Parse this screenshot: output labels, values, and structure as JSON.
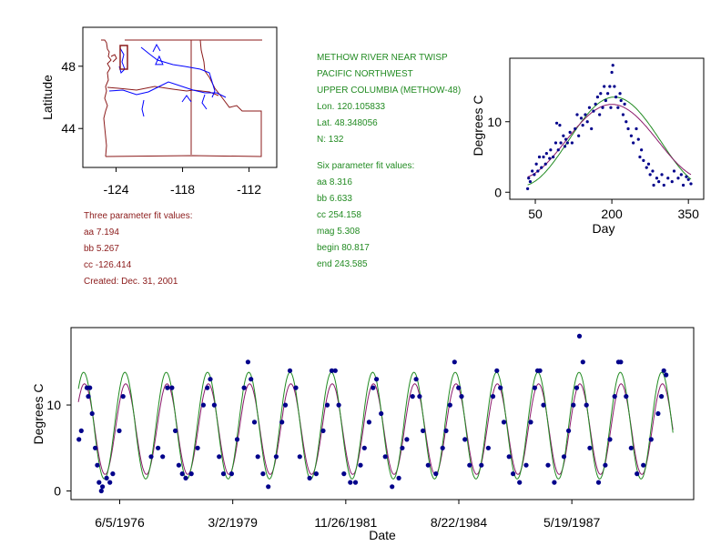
{
  "station": {
    "lines": [
      "METHOW RIVER NEAR TWISP",
      "PACIFIC NORTHWEST",
      "UPPER COLUMBIA (METHOW-48)",
      "Lon. 120.105833",
      "Lat. 48.348056",
      "N: 132"
    ]
  },
  "six_param": {
    "lines": [
      "Six parameter fit values:",
      "aa 8.316",
      "bb 6.633",
      "cc 254.158",
      "mag 5.308",
      "begin 80.817",
      "end 243.585"
    ]
  },
  "three_param": {
    "lines": [
      "Three parameter fit values:",
      "aa 7.194",
      "bb 5.267",
      "cc -126.414",
      "Created:   Dec. 31, 2001"
    ]
  },
  "colors": {
    "three_param_text": "#8b1a1a",
    "six_param_text": "#228b22",
    "points": "#00008b",
    "three_fit": "#8b1a6b",
    "six_fit": "#228b22",
    "rivers": "#0000ff",
    "borders": "#8b1a1a"
  },
  "chart_data": [
    {
      "type": "map",
      "ylabel": "Latitude",
      "xticks": [
        "-124",
        "-118",
        "-112"
      ],
      "yticks": [
        "48",
        "44"
      ],
      "xlim": [
        -127,
        -109.5
      ],
      "ylim": [
        41.5,
        50.5
      ]
    },
    {
      "type": "scatter",
      "xlabel": "Day",
      "ylabel": "Degrees C",
      "xlim": [
        0,
        380
      ],
      "ylim": [
        -1,
        19
      ],
      "xticks": [
        50,
        200,
        350
      ],
      "yticks": [
        0,
        10
      ],
      "points": [
        [
          35,
          0.5
        ],
        [
          37,
          2
        ],
        [
          40,
          1.5
        ],
        [
          44,
          3
        ],
        [
          48,
          2.5
        ],
        [
          52,
          4
        ],
        [
          55,
          3
        ],
        [
          58,
          5
        ],
        [
          62,
          3.5
        ],
        [
          66,
          5
        ],
        [
          70,
          4
        ],
        [
          72,
          5.5
        ],
        [
          78,
          4.8
        ],
        [
          80,
          6
        ],
        [
          85,
          5
        ],
        [
          90,
          7
        ],
        [
          92,
          9.8
        ],
        [
          95,
          6
        ],
        [
          98,
          9.5
        ],
        [
          100,
          7
        ],
        [
          105,
          8
        ],
        [
          108,
          6.5
        ],
        [
          110,
          7.5
        ],
        [
          113,
          7
        ],
        [
          118,
          8.5
        ],
        [
          122,
          7
        ],
        [
          128,
          9
        ],
        [
          132,
          11
        ],
        [
          135,
          8
        ],
        [
          140,
          10.5
        ],
        [
          143,
          9.5
        ],
        [
          148,
          11
        ],
        [
          152,
          10
        ],
        [
          156,
          12
        ],
        [
          160,
          9
        ],
        [
          164,
          11.5
        ],
        [
          168,
          12.5
        ],
        [
          172,
          13.5
        ],
        [
          176,
          11
        ],
        [
          178,
          14
        ],
        [
          182,
          12
        ],
        [
          185,
          15
        ],
        [
          188,
          13
        ],
        [
          192,
          14
        ],
        [
          196,
          15
        ],
        [
          198,
          12
        ],
        [
          200,
          17
        ],
        [
          202,
          18
        ],
        [
          205,
          15
        ],
        [
          208,
          13.5
        ],
        [
          212,
          12
        ],
        [
          216,
          14
        ],
        [
          218,
          13
        ],
        [
          222,
          11
        ],
        [
          225,
          12.5
        ],
        [
          228,
          10
        ],
        [
          232,
          9
        ],
        [
          238,
          8
        ],
        [
          242,
          7
        ],
        [
          248,
          9
        ],
        [
          252,
          7.5
        ],
        [
          255,
          5
        ],
        [
          258,
          6
        ],
        [
          262,
          4.5
        ],
        [
          268,
          3.5
        ],
        [
          272,
          4
        ],
        [
          275,
          2.5
        ],
        [
          280,
          3
        ],
        [
          282,
          1
        ],
        [
          288,
          2
        ],
        [
          292,
          1.5
        ],
        [
          298,
          2.5
        ],
        [
          302,
          1
        ],
        [
          310,
          2
        ],
        [
          318,
          1.5
        ],
        [
          322,
          3
        ],
        [
          330,
          2
        ],
        [
          336,
          2.5
        ],
        [
          340,
          1
        ],
        [
          346,
          2.2
        ],
        [
          350,
          1.8
        ],
        [
          355,
          1.2
        ]
      ],
      "series": [
        {
          "name": "Three parameter fit",
          "params": {
            "aa": 7.194,
            "bb": 5.267,
            "cc": -126.414
          }
        },
        {
          "name": "Six parameter fit",
          "params": {
            "aa": 8.316,
            "bb": 6.633,
            "cc": 254.158,
            "mag": 5.308,
            "begin": 80.817,
            "end": 243.585
          }
        }
      ]
    },
    {
      "type": "scatter",
      "xlabel": "Date",
      "ylabel": "Degrees C",
      "xlim": [
        "1975-04-01",
        "1990-05-01"
      ],
      "ylim": [
        -1,
        19
      ],
      "xticks": [
        "6/5/1976",
        "3/2/1979",
        "11/26/1981",
        "8/22/1984",
        "5/19/1987"
      ],
      "yticks": [
        0,
        10
      ],
      "points": [
        [
          "1975-06-10",
          6
        ],
        [
          "1975-07-01",
          7
        ],
        [
          "1975-08-20",
          12
        ],
        [
          "1975-09-01",
          11
        ],
        [
          "1975-09-15",
          12
        ],
        [
          "1975-10-05",
          9
        ],
        [
          "1975-11-01",
          5
        ],
        [
          "1975-11-20",
          3
        ],
        [
          "1975-12-05",
          1
        ],
        [
          "1975-12-25",
          0
        ],
        [
          "1976-01-05",
          0.5
        ],
        [
          "1976-02-10",
          1.5
        ],
        [
          "1976-03-10",
          1
        ],
        [
          "1976-04-05",
          2
        ],
        [
          "1976-06-01",
          7
        ],
        [
          "1976-07-05",
          11
        ],
        [
          "1977-03-10",
          4
        ],
        [
          "1977-05-10",
          5
        ],
        [
          "1977-06-20",
          4
        ],
        [
          "1977-08-01",
          12
        ],
        [
          "1977-09-10",
          12
        ],
        [
          "1977-10-10",
          7
        ],
        [
          "1977-11-10",
          3
        ],
        [
          "1977-12-10",
          2
        ],
        [
          "1978-01-10",
          1.5
        ],
        [
          "1978-03-01",
          2
        ],
        [
          "1978-04-25",
          5
        ],
        [
          "1978-06-15",
          10
        ],
        [
          "1978-07-20",
          12
        ],
        [
          "1978-08-15",
          13
        ],
        [
          "1978-09-20",
          10
        ],
        [
          "1978-11-01",
          4
        ],
        [
          "1978-12-10",
          2
        ],
        [
          "1979-02-20",
          2
        ],
        [
          "1979-04-10",
          6
        ],
        [
          "1979-06-10",
          12
        ],
        [
          "1979-07-15",
          15
        ],
        [
          "1979-08-10",
          13
        ],
        [
          "1979-09-10",
          8
        ],
        [
          "1979-10-10",
          4
        ],
        [
          "1979-11-25",
          2
        ],
        [
          "1980-01-10",
          0.5
        ],
        [
          "1980-03-20",
          4
        ],
        [
          "1980-05-10",
          8
        ],
        [
          "1980-06-10",
          10
        ],
        [
          "1980-07-20",
          14
        ],
        [
          "1980-09-10",
          12
        ],
        [
          "1980-10-15",
          4
        ],
        [
          "1981-01-10",
          1.5
        ],
        [
          "1981-03-10",
          2
        ],
        [
          "1981-05-10",
          7
        ],
        [
          "1981-06-15",
          10
        ],
        [
          "1981-07-25",
          14
        ],
        [
          "1981-08-25",
          14
        ],
        [
          "1981-09-25",
          10
        ],
        [
          "1981-11-10",
          2
        ],
        [
          "1982-01-05",
          1
        ],
        [
          "1982-02-20",
          1
        ],
        [
          "1982-04-05",
          3
        ],
        [
          "1982-05-10",
          5
        ],
        [
          "1982-06-20",
          8
        ],
        [
          "1982-07-25",
          12
        ],
        [
          "1982-08-25",
          13
        ],
        [
          "1982-10-05",
          9
        ],
        [
          "1982-11-10",
          4
        ],
        [
          "1983-01-10",
          0.5
        ],
        [
          "1983-03-10",
          1.5
        ],
        [
          "1983-04-10",
          5
        ],
        [
          "1983-05-20",
          6
        ],
        [
          "1983-07-10",
          11
        ],
        [
          "1983-08-10",
          13
        ],
        [
          "1983-09-10",
          11
        ],
        [
          "1983-10-10",
          7
        ],
        [
          "1983-11-25",
          3
        ],
        [
          "1984-02-01",
          2
        ],
        [
          "1984-04-01",
          5
        ],
        [
          "1984-05-01",
          7
        ],
        [
          "1984-06-05",
          10
        ],
        [
          "1984-07-15",
          15
        ],
        [
          "1984-08-20",
          12
        ],
        [
          "1984-09-15",
          11
        ],
        [
          "1984-10-15",
          6
        ],
        [
          "1984-11-25",
          3
        ],
        [
          "1985-03-10",
          3
        ],
        [
          "1985-05-10",
          5
        ],
        [
          "1985-06-20",
          11
        ],
        [
          "1985-07-25",
          14
        ],
        [
          "1985-08-25",
          12
        ],
        [
          "1985-09-25",
          8
        ],
        [
          "1985-11-10",
          4
        ],
        [
          "1985-12-15",
          2
        ],
        [
          "1986-02-10",
          1
        ],
        [
          "1986-04-10",
          3
        ],
        [
          "1986-05-20",
          8
        ],
        [
          "1986-06-25",
          12
        ],
        [
          "1986-07-20",
          14
        ],
        [
          "1986-08-10",
          14
        ],
        [
          "1986-09-10",
          10
        ],
        [
          "1986-10-20",
          3
        ],
        [
          "1986-12-15",
          1
        ],
        [
          "1987-03-10",
          4
        ],
        [
          "1987-04-20",
          7
        ],
        [
          "1987-06-01",
          10
        ],
        [
          "1987-07-01",
          12
        ],
        [
          "1987-07-25",
          18
        ],
        [
          "1987-08-25",
          15
        ],
        [
          "1987-09-25",
          10
        ],
        [
          "1987-10-25",
          5
        ],
        [
          "1988-01-10",
          1
        ],
        [
          "1988-03-10",
          3
        ],
        [
          "1988-04-20",
          6
        ],
        [
          "1988-06-01",
          11
        ],
        [
          "1988-07-05",
          15
        ],
        [
          "1988-07-25",
          15
        ],
        [
          "1988-09-10",
          11
        ],
        [
          "1988-10-25",
          5
        ],
        [
          "1988-12-15",
          2
        ],
        [
          "1989-02-10",
          3
        ],
        [
          "1989-04-20",
          6
        ],
        [
          "1989-06-20",
          9
        ],
        [
          "1989-07-20",
          11
        ],
        [
          "1989-08-10",
          14
        ],
        [
          "1989-08-30",
          13.5
        ]
      ],
      "series": [
        {
          "name": "Three parameter fit"
        },
        {
          "name": "Six parameter fit"
        }
      ]
    }
  ]
}
